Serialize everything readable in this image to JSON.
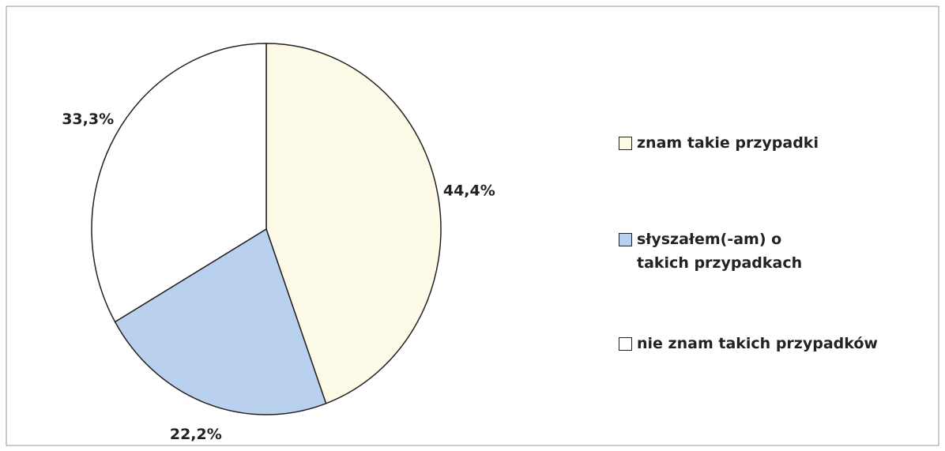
{
  "chart_data": {
    "type": "pie",
    "categories": [
      "znam takie przypadki",
      "słyszałem(-am) o takich przypadkach",
      "nie znam takich przypadków"
    ],
    "values": [
      44.4,
      22.2,
      33.3
    ],
    "value_labels": [
      "44,4%",
      "22,2%",
      "33,3%"
    ],
    "colors": [
      "#fdfbe8",
      "#b9d0ef",
      "#ffffff"
    ]
  }
}
